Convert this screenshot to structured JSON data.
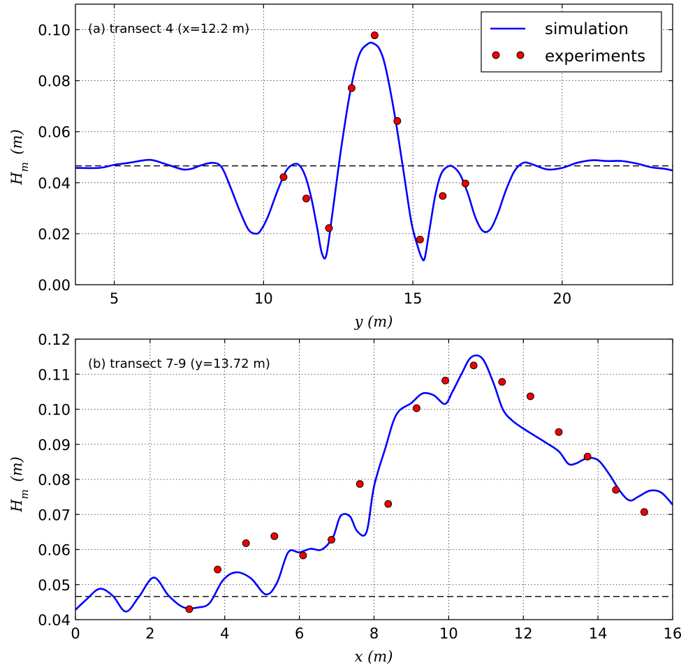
{
  "chart_data": [
    {
      "type": "line",
      "annotation": "(a) transect 4 (x=12.2 m)",
      "xlabel": "y (m)",
      "ylabel": "H_m (m)",
      "xlim": [
        3.7,
        23.7
      ],
      "ylim": [
        0.0,
        0.11
      ],
      "xticks": [
        5,
        10,
        15,
        20
      ],
      "xtick_labels": [
        "5",
        "10",
        "15",
        "20"
      ],
      "yticks": [
        0.0,
        0.02,
        0.04,
        0.06,
        0.08,
        0.1
      ],
      "ytick_labels": [
        "0.00",
        "0.02",
        "0.04",
        "0.06",
        "0.08",
        "0.10"
      ],
      "grid": true,
      "legend": {
        "placement": "top-right",
        "entries": [
          {
            "label": "simulation",
            "marker": "line",
            "color": "#0000ff"
          },
          {
            "label": "experiments",
            "marker": "dot",
            "color": "#ee0000"
          }
        ]
      },
      "reference_line": {
        "y": 0.0466,
        "style": "dashed",
        "color": "#000000"
      },
      "series": [
        {
          "name": "simulation",
          "color": "#0000ff",
          "x": [
            3.7,
            4.5,
            5.0,
            5.5,
            6.0,
            6.3,
            6.8,
            7.3,
            7.6,
            7.9,
            8.3,
            8.6,
            8.9,
            9.2,
            9.5,
            9.75,
            9.9,
            10.15,
            10.45,
            10.75,
            11.0,
            11.2,
            11.4,
            11.6,
            11.8,
            11.95,
            12.1,
            12.3,
            12.6,
            12.9,
            13.2,
            13.5,
            13.7,
            13.9,
            14.1,
            14.4,
            14.7,
            14.95,
            15.15,
            15.3,
            15.4,
            15.55,
            15.75,
            15.95,
            16.2,
            16.4,
            16.6,
            16.85,
            17.1,
            17.35,
            17.6,
            17.85,
            18.1,
            18.4,
            18.7,
            19.0,
            19.5,
            20.0,
            20.5,
            21.0,
            21.5,
            22.0,
            22.5,
            23.0,
            23.4,
            23.7
          ],
          "y": [
            0.0458,
            0.0458,
            0.047,
            0.0478,
            0.0488,
            0.0488,
            0.047,
            0.0452,
            0.0455,
            0.0468,
            0.0478,
            0.046,
            0.038,
            0.029,
            0.0215,
            0.02,
            0.0212,
            0.0268,
            0.0363,
            0.0445,
            0.0472,
            0.0468,
            0.0425,
            0.034,
            0.022,
            0.0125,
            0.0115,
            0.0275,
            0.0535,
            0.0755,
            0.09,
            0.0945,
            0.0945,
            0.092,
            0.0845,
            0.066,
            0.0435,
            0.0245,
            0.0155,
            0.0105,
            0.0105,
            0.021,
            0.035,
            0.0435,
            0.0465,
            0.0458,
            0.0428,
            0.0355,
            0.0262,
            0.021,
            0.0218,
            0.028,
            0.0365,
            0.0445,
            0.0478,
            0.0472,
            0.0452,
            0.0458,
            0.0478,
            0.0488,
            0.0485,
            0.0485,
            0.0475,
            0.046,
            0.0455,
            0.0448
          ]
        },
        {
          "name": "experiments",
          "color": "#ee0000",
          "x": [
            10.67,
            11.43,
            12.19,
            12.95,
            13.72,
            14.48,
            15.24,
            16.0,
            16.76
          ],
          "y": [
            0.0422,
            0.0338,
            0.0222,
            0.0771,
            0.0978,
            0.0642,
            0.0177,
            0.0348,
            0.0397
          ]
        }
      ]
    },
    {
      "type": "line",
      "annotation": "(b) transect 7-9 (y=13.72 m)",
      "xlabel": "x (m)",
      "ylabel": "H_m (m)",
      "xlim": [
        0,
        16
      ],
      "ylim": [
        0.04,
        0.12
      ],
      "xticks": [
        0,
        2,
        4,
        6,
        8,
        10,
        12,
        14,
        16
      ],
      "xtick_labels": [
        "0",
        "2",
        "4",
        "6",
        "8",
        "10",
        "12",
        "14",
        "16"
      ],
      "yticks": [
        0.04,
        0.05,
        0.06,
        0.07,
        0.08,
        0.09,
        0.1,
        0.11,
        0.12
      ],
      "ytick_labels": [
        "0.04",
        "0.05",
        "0.06",
        "0.07",
        "0.08",
        "0.09",
        "0.10",
        "0.11",
        "0.12"
      ],
      "grid": true,
      "reference_line": {
        "y": 0.0466,
        "style": "dashed",
        "color": "#000000"
      },
      "series": [
        {
          "name": "simulation",
          "color": "#0000ff",
          "x": [
            0.0,
            0.3,
            0.65,
            1.0,
            1.35,
            1.7,
            2.1,
            2.5,
            2.9,
            3.3,
            3.6,
            3.95,
            4.3,
            4.7,
            5.1,
            5.4,
            5.7,
            6.0,
            6.3,
            6.6,
            6.9,
            7.1,
            7.35,
            7.55,
            7.8,
            8.0,
            8.3,
            8.6,
            9.0,
            9.3,
            9.6,
            9.9,
            10.1,
            10.35,
            10.6,
            10.9,
            11.2,
            11.45,
            11.7,
            12.0,
            12.3,
            12.6,
            12.95,
            13.2,
            13.4,
            13.7,
            14.0,
            14.3,
            14.6,
            14.85,
            15.1,
            15.4,
            15.7,
            16.0
          ],
          "y": [
            0.0428,
            0.0458,
            0.0488,
            0.0468,
            0.0423,
            0.0465,
            0.052,
            0.0468,
            0.0435,
            0.0435,
            0.0448,
            0.0512,
            0.0535,
            0.0518,
            0.0472,
            0.0505,
            0.0592,
            0.0592,
            0.0602,
            0.06,
            0.0635,
            0.0695,
            0.0695,
            0.0652,
            0.065,
            0.078,
            0.0888,
            0.0985,
            0.1018,
            0.1045,
            0.104,
            0.1015,
            0.105,
            0.1102,
            0.1148,
            0.1145,
            0.1075,
            0.1,
            0.0968,
            0.0945,
            0.0925,
            0.0905,
            0.088,
            0.0845,
            0.0845,
            0.086,
            0.0855,
            0.0815,
            0.0765,
            0.074,
            0.0752,
            0.0768,
            0.0762,
            0.0728
          ]
        },
        {
          "name": "experiments",
          "color": "#ee0000",
          "x": [
            3.05,
            3.81,
            4.57,
            5.33,
            6.1,
            6.86,
            7.62,
            8.38,
            9.14,
            9.91,
            10.67,
            11.43,
            12.19,
            12.95,
            13.72,
            14.48,
            15.24
          ],
          "y": [
            0.043,
            0.0543,
            0.0618,
            0.0638,
            0.0583,
            0.0628,
            0.0787,
            0.073,
            0.1003,
            0.1082,
            0.1125,
            0.1078,
            0.1037,
            0.0935,
            0.0865,
            0.077,
            0.0707
          ]
        }
      ]
    }
  ]
}
